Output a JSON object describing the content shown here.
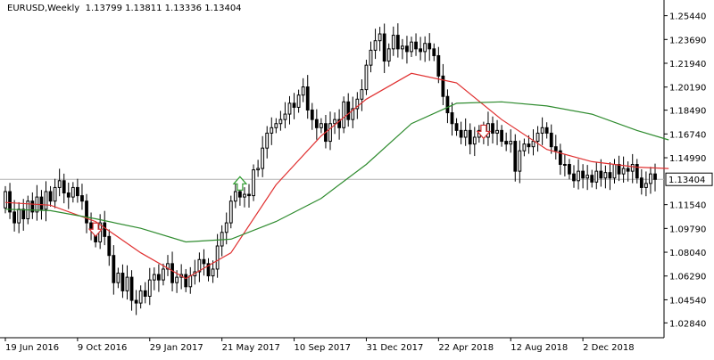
{
  "header": {
    "symbol": "EURUSD,Weekly",
    "ohlc": "1.13799 1.13811 1.13336 1.13404"
  },
  "colors": {
    "candle": "#000000",
    "ma_fast": "#e03030",
    "ma_slow": "#2e8b2e",
    "arrow_up": "#2e9b2e",
    "arrow_down": "#d03030",
    "price_line": "#b0b0b0"
  },
  "chart_data": {
    "type": "candlestick",
    "title": "EURUSD,Weekly",
    "ohlc_readout": "1.13799 1.13811 1.13336 1.13404",
    "current_price": 1.13404,
    "current_price_label": "1.13404",
    "ylim": [
      1.0175,
      1.2607
    ],
    "y_ticks": [
      "1.25440",
      "1.23690",
      "1.21940",
      "1.20190",
      "1.18490",
      "1.16740",
      "1.14990",
      "1.13404",
      "1.11540",
      "1.09790",
      "1.08040",
      "1.06290",
      "1.04540",
      "1.02840"
    ],
    "y_tick_values": [
      1.2544,
      1.2369,
      1.2194,
      1.2019,
      1.1849,
      1.1674,
      1.1499,
      1.1154,
      1.0979,
      1.0804,
      1.0629,
      1.0454,
      1.0284
    ],
    "x_ticks": [
      "19 Jun 2016",
      "9 Oct 2016",
      "29 Jan 2017",
      "21 May 2017",
      "10 Sep 2017",
      "31 Dec 2017",
      "22 Apr 2018",
      "12 Aug 2018",
      "2 Dec 2018"
    ],
    "x_tick_index": [
      0,
      16,
      32,
      48,
      64,
      80,
      96,
      112,
      128
    ],
    "series": [
      {
        "name": "",
        "style": "candles",
        "close": [
          1.125,
          1.11,
          1.102,
          1.112,
          1.105,
          1.118,
          1.11,
          1.121,
          1.112,
          1.125,
          1.118,
          1.128,
          1.133,
          1.124,
          1.121,
          1.128,
          1.122,
          1.118,
          1.102,
          1.098,
          1.088,
          1.102,
          1.092,
          1.078,
          1.058,
          1.065,
          1.052,
          1.062,
          1.045,
          1.043,
          1.052,
          1.048,
          1.06,
          1.064,
          1.06,
          1.068,
          1.072,
          1.058,
          1.062,
          1.064,
          1.055,
          1.063,
          1.066,
          1.075,
          1.072,
          1.063,
          1.068,
          1.085,
          1.095,
          1.102,
          1.118,
          1.125,
          1.121,
          1.123,
          1.122,
          1.141,
          1.142,
          1.157,
          1.168,
          1.172,
          1.175,
          1.178,
          1.182,
          1.19,
          1.187,
          1.196,
          1.202,
          1.185,
          1.178,
          1.172,
          1.175,
          1.162,
          1.175,
          1.178,
          1.172,
          1.191,
          1.178,
          1.186,
          1.193,
          1.2,
          1.218,
          1.229,
          1.236,
          1.241,
          1.221,
          1.23,
          1.24,
          1.23,
          1.232,
          1.228,
          1.235,
          1.23,
          1.228,
          1.234,
          1.23,
          1.225,
          1.21,
          1.195,
          1.183,
          1.175,
          1.17,
          1.165,
          1.17,
          1.16,
          1.165,
          1.17,
          1.165,
          1.175,
          1.168,
          1.17,
          1.162,
          1.16,
          1.162,
          1.14,
          1.155,
          1.16,
          1.158,
          1.162,
          1.168,
          1.172,
          1.168,
          1.158,
          1.155,
          1.145,
          1.145,
          1.138,
          1.133,
          1.14,
          1.135,
          1.137,
          1.132,
          1.14,
          1.135,
          1.139,
          1.135,
          1.145,
          1.138,
          1.142,
          1.14,
          1.145,
          1.135,
          1.128,
          1.131,
          1.138,
          1.134
        ],
        "open": [
          1.113,
          1.125,
          1.11,
          1.102,
          1.112,
          1.105,
          1.118,
          1.11,
          1.121,
          1.112,
          1.125,
          1.118,
          1.128,
          1.133,
          1.124,
          1.121,
          1.128,
          1.122,
          1.118,
          1.102,
          1.098,
          1.088,
          1.102,
          1.092,
          1.078,
          1.058,
          1.065,
          1.052,
          1.062,
          1.045,
          1.043,
          1.052,
          1.048,
          1.06,
          1.064,
          1.06,
          1.068,
          1.072,
          1.058,
          1.062,
          1.064,
          1.055,
          1.063,
          1.066,
          1.075,
          1.072,
          1.063,
          1.068,
          1.085,
          1.095,
          1.102,
          1.118,
          1.125,
          1.121,
          1.123,
          1.122,
          1.141,
          1.142,
          1.157,
          1.168,
          1.172,
          1.175,
          1.178,
          1.182,
          1.19,
          1.187,
          1.196,
          1.202,
          1.185,
          1.178,
          1.172,
          1.175,
          1.162,
          1.175,
          1.178,
          1.172,
          1.191,
          1.178,
          1.186,
          1.193,
          1.2,
          1.218,
          1.229,
          1.236,
          1.241,
          1.221,
          1.23,
          1.24,
          1.23,
          1.232,
          1.228,
          1.235,
          1.23,
          1.228,
          1.234,
          1.23,
          1.225,
          1.21,
          1.195,
          1.183,
          1.175,
          1.17,
          1.165,
          1.17,
          1.16,
          1.165,
          1.17,
          1.165,
          1.175,
          1.168,
          1.17,
          1.162,
          1.16,
          1.162,
          1.14,
          1.155,
          1.16,
          1.158,
          1.162,
          1.168,
          1.172,
          1.168,
          1.158,
          1.155,
          1.145,
          1.145,
          1.138,
          1.133,
          1.14,
          1.135,
          1.137,
          1.132,
          1.14,
          1.135,
          1.139,
          1.135,
          1.145,
          1.138,
          1.142,
          1.14,
          1.145,
          1.135,
          1.128,
          1.131,
          1.138
        ]
      },
      {
        "name": "",
        "style": "line",
        "color_key": "ma_fast",
        "x": [
          0,
          10,
          20,
          30,
          40,
          50,
          60,
          70,
          80,
          90,
          100,
          110,
          120,
          130,
          140,
          147
        ],
        "values": [
          1.117,
          1.115,
          1.103,
          1.08,
          1.061,
          1.08,
          1.13,
          1.166,
          1.193,
          1.212,
          1.205,
          1.178,
          1.156,
          1.147,
          1.143,
          1.142
        ]
      },
      {
        "name": "",
        "style": "line",
        "color_key": "ma_slow",
        "x": [
          0,
          10,
          20,
          30,
          40,
          50,
          60,
          70,
          80,
          90,
          100,
          110,
          120,
          130,
          140,
          147
        ],
        "values": [
          1.112,
          1.111,
          1.105,
          1.098,
          1.088,
          1.09,
          1.103,
          1.12,
          1.145,
          1.175,
          1.19,
          1.191,
          1.188,
          1.182,
          1.17,
          1.163
        ]
      }
    ],
    "markers": [
      {
        "type": "arrow-down",
        "index": 20,
        "price": 1.096
      },
      {
        "type": "arrow-up",
        "index": 52,
        "price": 1.132
      },
      {
        "type": "arrow-down",
        "index": 106,
        "price": 1.168
      }
    ]
  }
}
